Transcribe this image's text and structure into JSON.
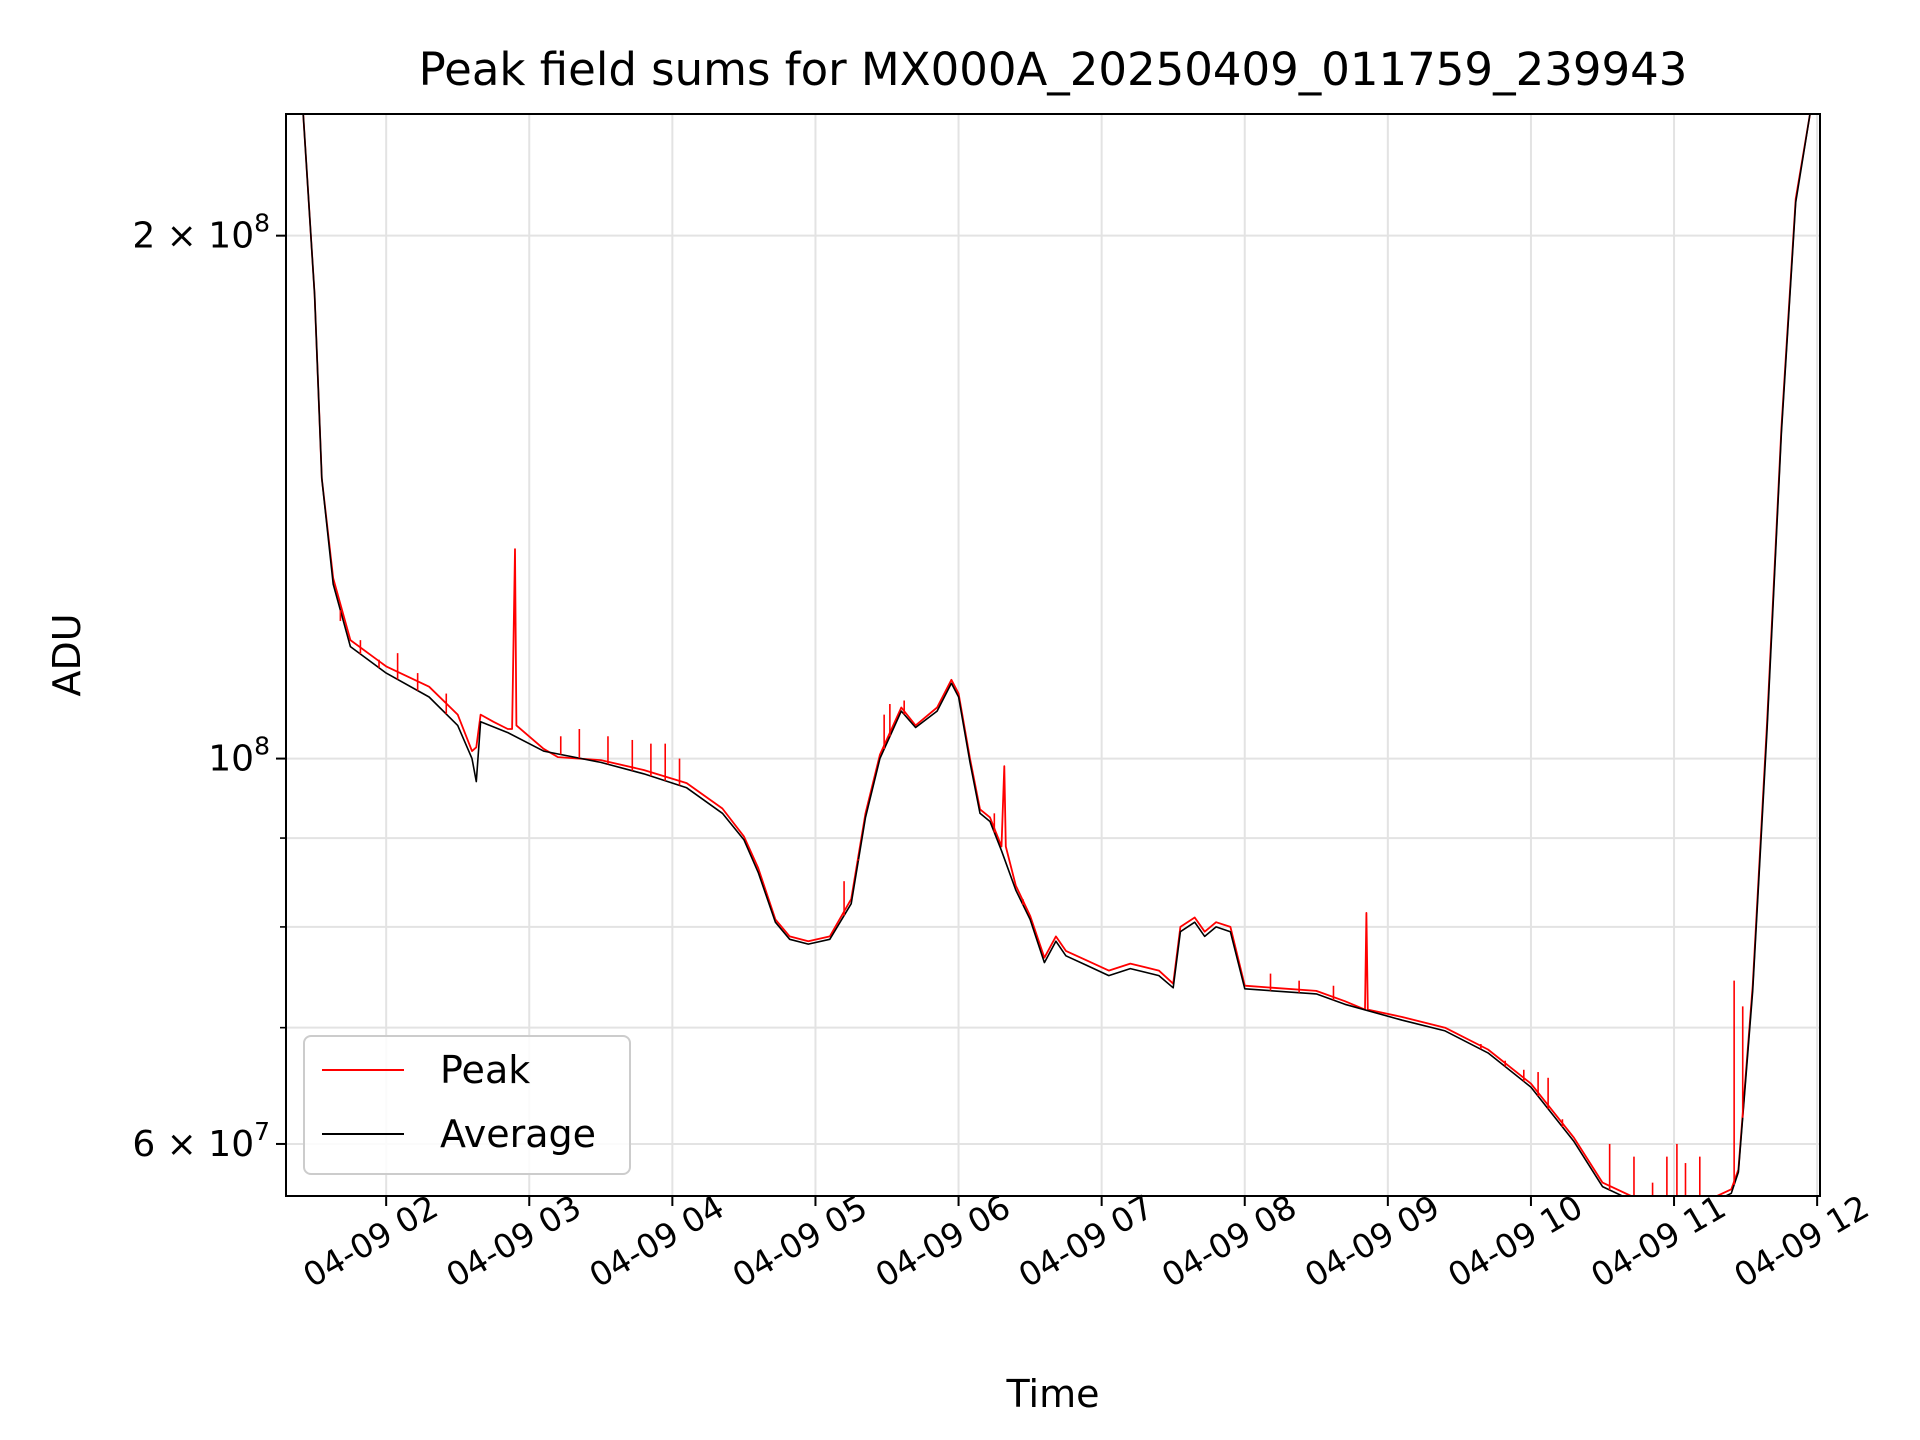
{
  "chart_data": {
    "type": "line",
    "title": "Peak field sums for MX000A_20250409_011759_239943",
    "xlabel": "Time",
    "ylabel": "ADU",
    "yscale": "log",
    "xlim": [
      1.3,
      12.02
    ],
    "ylim": [
      56000000.0,
      235000000.0
    ],
    "grid": true,
    "legend_position": "lower-left",
    "x_ticks": [
      {
        "value": 2,
        "label": "04-09 02"
      },
      {
        "value": 3,
        "label": "04-09 03"
      },
      {
        "value": 4,
        "label": "04-09 04"
      },
      {
        "value": 5,
        "label": "04-09 05"
      },
      {
        "value": 6,
        "label": "04-09 06"
      },
      {
        "value": 7,
        "label": "04-09 07"
      },
      {
        "value": 8,
        "label": "04-09 08"
      },
      {
        "value": 9,
        "label": "04-09 09"
      },
      {
        "value": 10,
        "label": "04-09 10"
      },
      {
        "value": 11,
        "label": "04-09 11"
      },
      {
        "value": 12,
        "label": "04-09 12"
      }
    ],
    "y_major_ticks": [
      {
        "value": 60000000,
        "base": "6 × 10",
        "exp": "7"
      },
      {
        "value": 100000000,
        "base": "10",
        "exp": "8"
      },
      {
        "value": 200000000,
        "base": "2 × 10",
        "exp": "8"
      }
    ],
    "y_minor_ticks": [
      70000000,
      80000000,
      90000000
    ],
    "series": [
      {
        "name": "Peak",
        "color": "#ff0000",
        "points": [
          [
            1.3,
            235000000.0
          ],
          [
            1.42,
            235000000.0
          ],
          [
            1.5,
            185000000.0
          ],
          [
            1.55,
            145000000.0
          ],
          [
            1.63,
            127000000.0
          ],
          [
            1.75,
            117000000.0
          ],
          [
            2.0,
            113000000.0
          ],
          [
            2.3,
            110000000.0
          ],
          [
            2.5,
            106000000.0
          ],
          [
            2.6,
            101000000.0
          ],
          [
            2.63,
            101500000.0
          ],
          [
            2.66,
            106000000.0
          ],
          [
            2.75,
            105000000.0
          ],
          [
            2.85,
            104000000.0
          ],
          [
            2.88,
            104000000.0
          ],
          [
            2.9,
            132000000.0
          ],
          [
            2.91,
            104500000.0
          ],
          [
            3.1,
            101300000.0
          ],
          [
            3.2,
            100200000.0
          ],
          [
            3.5,
            99800000.0
          ],
          [
            3.8,
            98500000.0
          ],
          [
            4.1,
            96800000.0
          ],
          [
            4.35,
            93600000.0
          ],
          [
            4.5,
            90200000.0
          ],
          [
            4.6,
            86500000.0
          ],
          [
            4.72,
            80800000.0
          ],
          [
            4.82,
            79000000.0
          ],
          [
            4.95,
            78500000.0
          ],
          [
            5.1,
            79000000.0
          ],
          [
            5.25,
            83000000.0
          ],
          [
            5.35,
            93000000.0
          ],
          [
            5.45,
            100500000.0
          ],
          [
            5.6,
            107000000.0
          ],
          [
            5.7,
            104500000.0
          ],
          [
            5.85,
            107000000.0
          ],
          [
            5.95,
            111000000.0
          ],
          [
            6.0,
            109000000.0
          ],
          [
            6.08,
            100000000.0
          ],
          [
            6.15,
            93500000.0
          ],
          [
            6.22,
            92500000.0
          ],
          [
            6.3,
            89000000.0
          ],
          [
            6.32,
            99000000.0
          ],
          [
            6.33,
            89000000.0
          ],
          [
            6.4,
            84500000.0
          ],
          [
            6.5,
            81200000.0
          ],
          [
            6.6,
            76800000.0
          ],
          [
            6.68,
            79000000.0
          ],
          [
            6.75,
            77500000.0
          ],
          [
            6.9,
            76500000.0
          ],
          [
            7.05,
            75500000.0
          ],
          [
            7.2,
            76200000.0
          ],
          [
            7.4,
            75500000.0
          ],
          [
            7.5,
            74200000.0
          ],
          [
            7.55,
            80000000.0
          ],
          [
            7.65,
            81000000.0
          ],
          [
            7.72,
            79500000.0
          ],
          [
            7.8,
            80500000.0
          ],
          [
            7.9,
            80000000.0
          ],
          [
            8.0,
            74000000.0
          ],
          [
            8.2,
            73800000.0
          ],
          [
            8.5,
            73500000.0
          ],
          [
            8.7,
            72500000.0
          ],
          [
            8.84,
            71700000.0
          ],
          [
            8.85,
            81500000.0
          ],
          [
            8.86,
            71700000.0
          ],
          [
            9.1,
            71000000.0
          ],
          [
            9.4,
            70000000.0
          ],
          [
            9.7,
            68000000.0
          ],
          [
            10.0,
            65000000.0
          ],
          [
            10.3,
            60500000.0
          ],
          [
            10.5,
            57000000.0
          ],
          [
            10.7,
            56000000.0
          ],
          [
            10.9,
            55800000.0
          ],
          [
            11.05,
            56000000.0
          ],
          [
            11.3,
            56000000.0
          ],
          [
            11.4,
            56500000.0
          ],
          [
            11.45,
            58000000.0
          ],
          [
            11.55,
            74000000.0
          ],
          [
            11.65,
            105000000.0
          ],
          [
            11.75,
            155000000.0
          ],
          [
            11.85,
            210000000.0
          ],
          [
            11.95,
            235000000.0
          ],
          [
            12.02,
            235000000.0
          ]
        ]
      },
      {
        "name": "Average",
        "color": "#000000",
        "points": [
          [
            1.3,
            235000000.0
          ],
          [
            1.42,
            235000000.0
          ],
          [
            1.5,
            185000000.0
          ],
          [
            1.55,
            145000000.0
          ],
          [
            1.63,
            126000000.0
          ],
          [
            1.75,
            116000000.0
          ],
          [
            2.0,
            112000000.0
          ],
          [
            2.3,
            108500000.0
          ],
          [
            2.5,
            104500000.0
          ],
          [
            2.6,
            100000000.0
          ],
          [
            2.63,
            97000000.0
          ],
          [
            2.66,
            105000000.0
          ],
          [
            2.85,
            103500000.0
          ],
          [
            3.1,
            101000000.0
          ],
          [
            3.5,
            99500000.0
          ],
          [
            3.8,
            98000000.0
          ],
          [
            4.1,
            96200000.0
          ],
          [
            4.35,
            93000000.0
          ],
          [
            4.5,
            89800000.0
          ],
          [
            4.6,
            86000000.0
          ],
          [
            4.72,
            80500000.0
          ],
          [
            4.82,
            78700000.0
          ],
          [
            4.95,
            78200000.0
          ],
          [
            5.1,
            78700000.0
          ],
          [
            5.25,
            82500000.0
          ],
          [
            5.35,
            92500000.0
          ],
          [
            5.45,
            100000000.0
          ],
          [
            5.6,
            106500000.0
          ],
          [
            5.7,
            104200000.0
          ],
          [
            5.85,
            106500000.0
          ],
          [
            5.95,
            110500000.0
          ],
          [
            6.0,
            108500000.0
          ],
          [
            6.08,
            99500000.0
          ],
          [
            6.15,
            93000000.0
          ],
          [
            6.22,
            92000000.0
          ],
          [
            6.3,
            88500000.0
          ],
          [
            6.4,
            84000000.0
          ],
          [
            6.5,
            80800000.0
          ],
          [
            6.6,
            76300000.0
          ],
          [
            6.68,
            78500000.0
          ],
          [
            6.75,
            77000000.0
          ],
          [
            6.9,
            76000000.0
          ],
          [
            7.05,
            75000000.0
          ],
          [
            7.2,
            75700000.0
          ],
          [
            7.4,
            75000000.0
          ],
          [
            7.5,
            73800000.0
          ],
          [
            7.55,
            79500000.0
          ],
          [
            7.65,
            80500000.0
          ],
          [
            7.72,
            79000000.0
          ],
          [
            7.8,
            80000000.0
          ],
          [
            7.9,
            79500000.0
          ],
          [
            8.0,
            73700000.0
          ],
          [
            8.2,
            73500000.0
          ],
          [
            8.5,
            73200000.0
          ],
          [
            8.7,
            72200000.0
          ],
          [
            9.1,
            70700000.0
          ],
          [
            9.4,
            69700000.0
          ],
          [
            9.7,
            67700000.0
          ],
          [
            10.0,
            64700000.0
          ],
          [
            10.3,
            60200000.0
          ],
          [
            10.5,
            56700000.0
          ],
          [
            10.7,
            55700000.0
          ],
          [
            10.9,
            55500000.0
          ],
          [
            11.05,
            55700000.0
          ],
          [
            11.3,
            55700000.0
          ],
          [
            11.4,
            56200000.0
          ],
          [
            11.45,
            57800000.0
          ],
          [
            11.55,
            73500000.0
          ],
          [
            11.65,
            104000000.0
          ],
          [
            11.75,
            154000000.0
          ],
          [
            11.85,
            209000000.0
          ],
          [
            11.95,
            235000000.0
          ],
          [
            12.02,
            235000000.0
          ]
        ]
      }
    ],
    "peak_spikes": [
      [
        1.68,
        120000000.0
      ],
      [
        1.82,
        117000000.0
      ],
      [
        1.95,
        114000000.0
      ],
      [
        2.08,
        115000000.0
      ],
      [
        2.22,
        112000000.0
      ],
      [
        2.42,
        109000000.0
      ],
      [
        3.22,
        103000000.0
      ],
      [
        3.35,
        104000000.0
      ],
      [
        3.55,
        103000000.0
      ],
      [
        3.72,
        102500000.0
      ],
      [
        3.85,
        102000000.0
      ],
      [
        3.95,
        102000000.0
      ],
      [
        4.05,
        100000000.0
      ],
      [
        5.2,
        85000000.0
      ],
      [
        5.3,
        87500000.0
      ],
      [
        5.48,
        106000000.0
      ],
      [
        5.52,
        107500000.0
      ],
      [
        5.62,
        108000000.0
      ],
      [
        6.25,
        93000000.0
      ],
      [
        6.45,
        83000000.0
      ],
      [
        8.18,
        75200000.0
      ],
      [
        8.38,
        74500000.0
      ],
      [
        8.62,
        74000000.0
      ],
      [
        9.65,
        68500000.0
      ],
      [
        9.82,
        67000000.0
      ],
      [
        9.95,
        66200000.0
      ],
      [
        10.05,
        66000000.0
      ],
      [
        10.12,
        65500000.0
      ],
      [
        10.22,
        62000000.0
      ],
      [
        10.55,
        60000000.0
      ],
      [
        10.72,
        59000000.0
      ],
      [
        10.85,
        57000000.0
      ],
      [
        10.95,
        59000000.0
      ],
      [
        11.02,
        60000000.0
      ],
      [
        11.08,
        58500000.0
      ],
      [
        11.18,
        59000000.0
      ],
      [
        11.42,
        74500000.0
      ],
      [
        11.48,
        72000000.0
      ]
    ]
  }
}
